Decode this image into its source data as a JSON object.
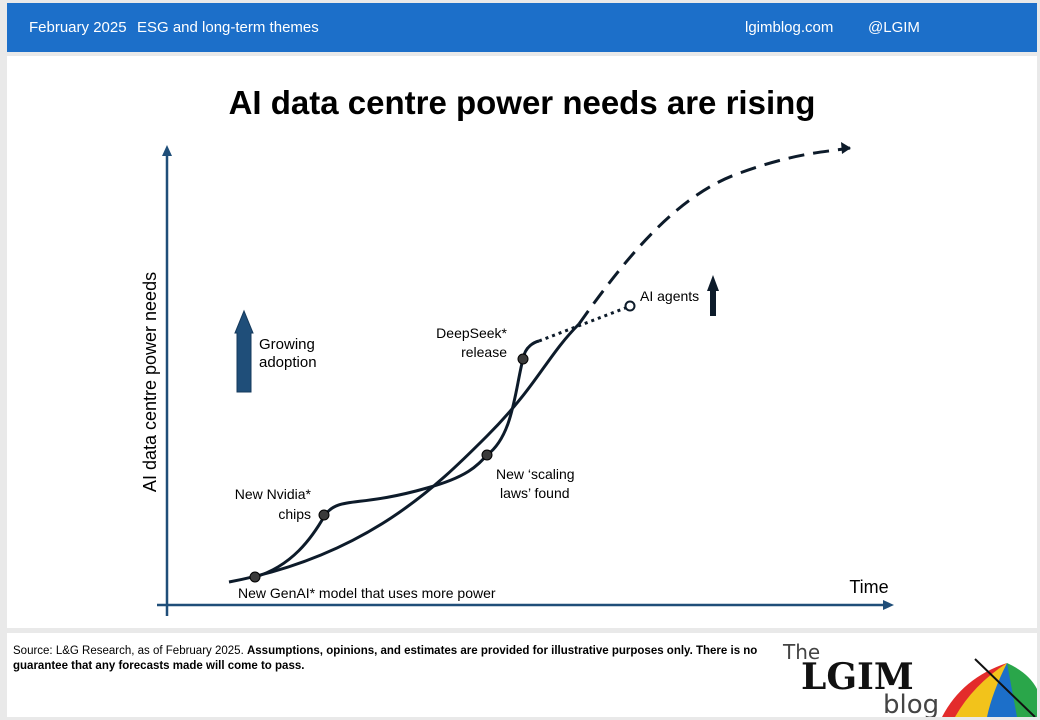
{
  "header": {
    "date": "February 2025",
    "category": "ESG and long-term themes",
    "site": "lgimblog.com",
    "handle": "@LGIM"
  },
  "title": "AI data centre power needs are rising",
  "chart_data": {
    "type": "line",
    "xlabel": "Time",
    "ylabel": "AI data centre power needs",
    "annotations": {
      "genai": "New GenAI* model that uses more power",
      "nvidia_1": "New Nvidia*",
      "nvidia_2": "chips",
      "scaling_1": "New ‘scaling",
      "scaling_2": "laws’ found",
      "deepseek_1": "DeepSeek*",
      "deepseek_2": "release",
      "agents": "AI agents",
      "adoption_1": "Growing",
      "adoption_2": "adoption"
    },
    "colors": {
      "axis": "#1f4e79",
      "curve": "#0d1b2a",
      "arrow": "#1f4e79",
      "point": "#3a3a3a"
    }
  },
  "footer": {
    "source_prefix": "Source: L&G Research, as of February 2025.",
    "disclaimer": "Assumptions, opinions, and estimates are provided for illustrative purposes only. There is no guarantee that any forecasts made will come to pass."
  },
  "logo": {
    "the": "The",
    "brand": "LGIM",
    "blog": "blog",
    "colors": [
      "#e32b2b",
      "#2aa64a",
      "#f2c31b",
      "#1c6fc9"
    ]
  }
}
